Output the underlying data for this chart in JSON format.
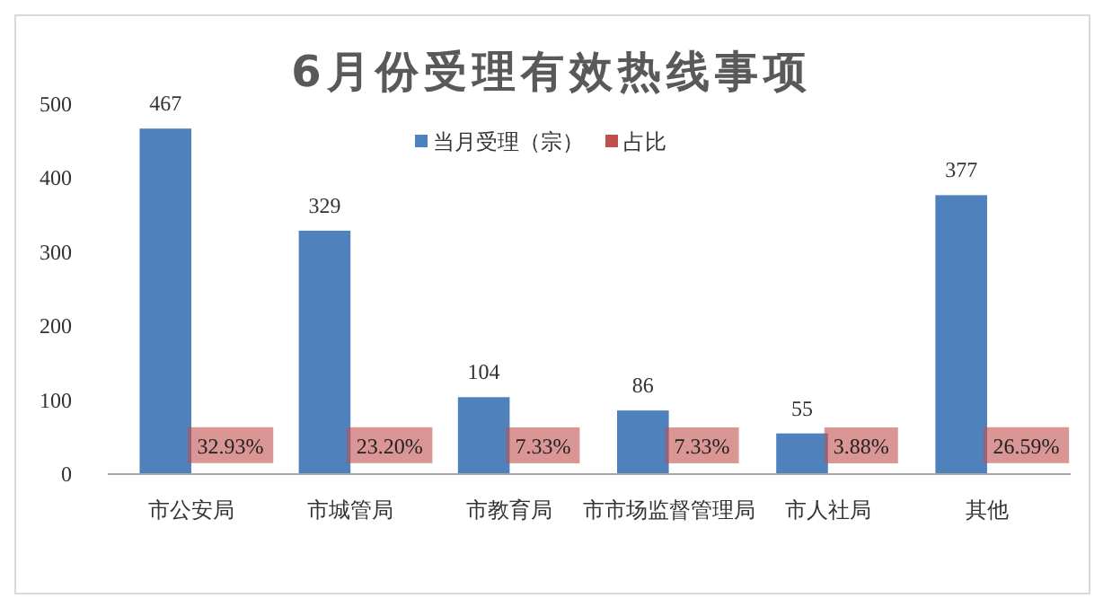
{
  "chart_data": {
    "type": "bar",
    "title": "6月份受理有效热线事项",
    "categories": [
      "市公安局",
      "市城管局",
      "市教育局",
      "市市场监督管理局",
      "市人社局",
      "其他"
    ],
    "series": [
      {
        "name": "当月受理（宗）",
        "color": "#4f81bd",
        "values": [
          467,
          329,
          104,
          86,
          55,
          377
        ],
        "value_labels": [
          "467",
          "329",
          "104",
          "86",
          "55",
          "377"
        ]
      },
      {
        "name": "占比",
        "color": "#c0504d",
        "values": [
          0.3293,
          0.232,
          0.0733,
          0.0733,
          0.0388,
          0.2659
        ],
        "value_labels": [
          "32.93%",
          "23.20%",
          "7.33%",
          "7.33%",
          "3.88%",
          "26.59%"
        ]
      }
    ],
    "ylim": [
      0,
      500
    ],
    "yticks": [
      0,
      100,
      200,
      300,
      400,
      500
    ],
    "grid": false,
    "legend": "top"
  }
}
